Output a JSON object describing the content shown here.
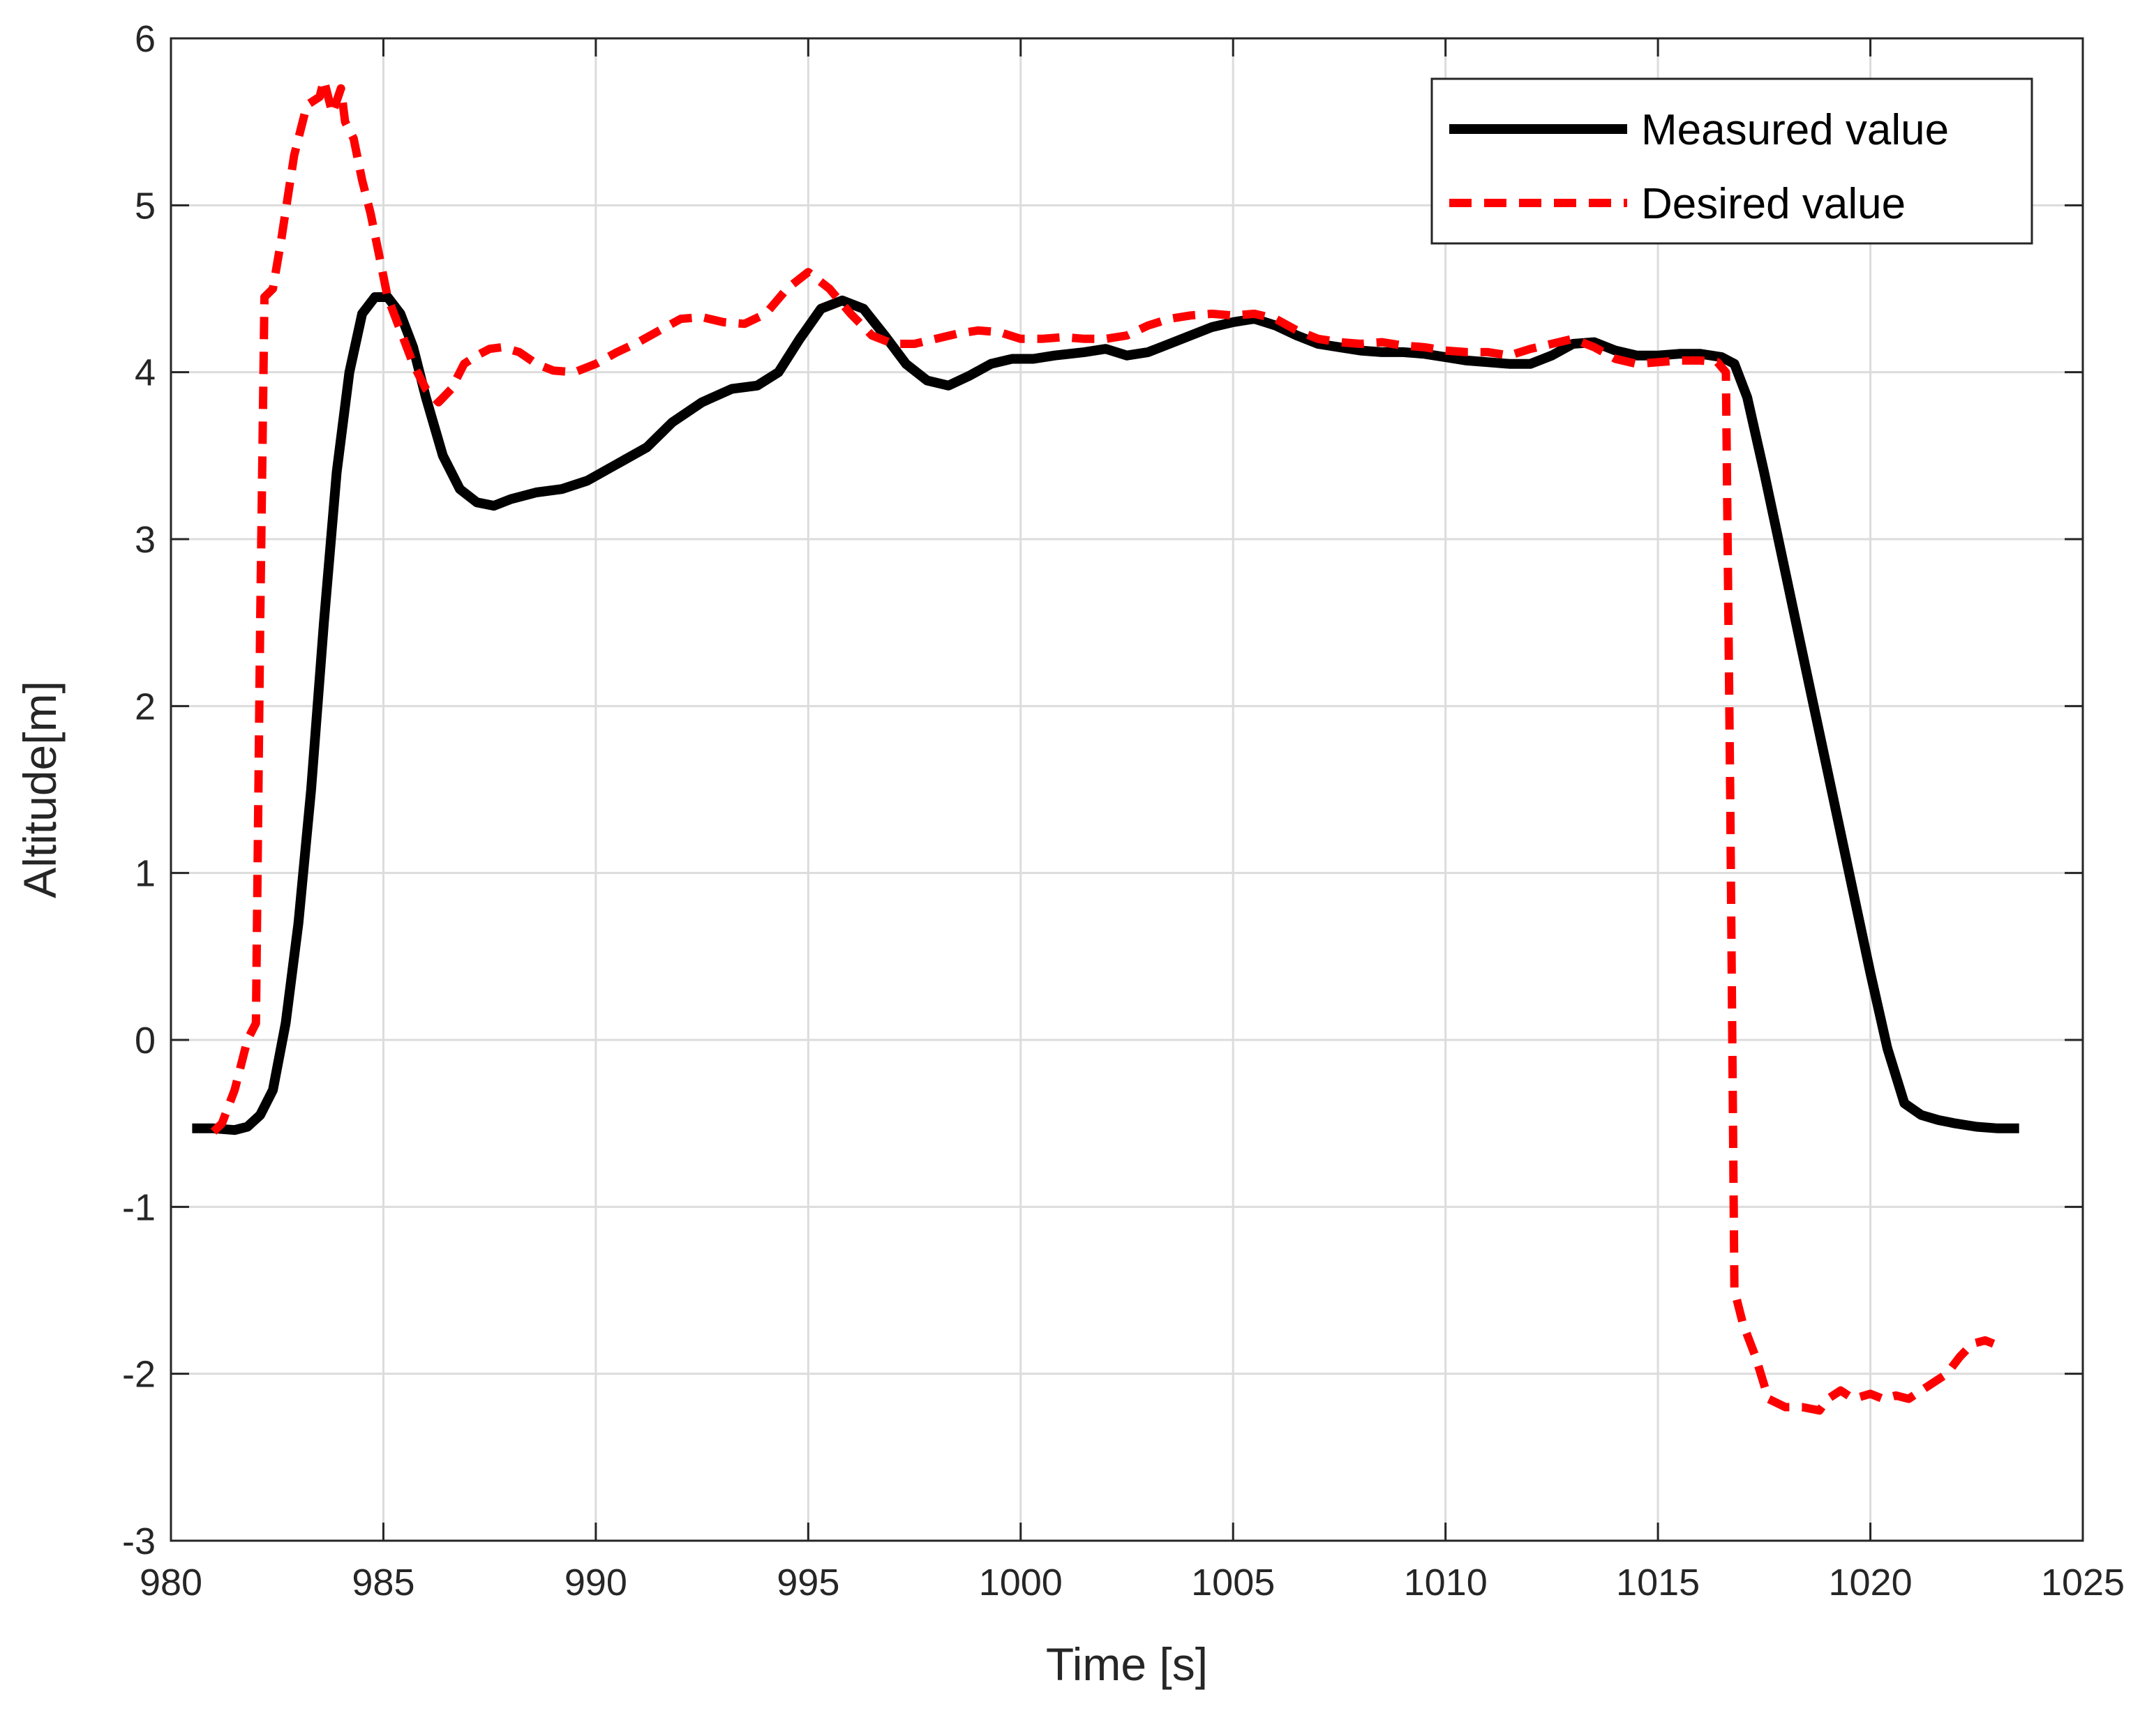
{
  "chart_data": {
    "type": "line",
    "title": "",
    "xlabel": "Time [s]",
    "ylabel": "Altitude[m]",
    "xlim": [
      980,
      1025
    ],
    "ylim": [
      -3,
      6
    ],
    "xticks": [
      "980",
      "985",
      "990",
      "995",
      "1000",
      "1005",
      "1010",
      "1015",
      "1020",
      "1025"
    ],
    "yticks": [
      "-3",
      "-2",
      "-1",
      "0",
      "1",
      "2",
      "3",
      "4",
      "5",
      "6"
    ],
    "grid": true,
    "legend_position": "top-right",
    "series": [
      {
        "name": "Measured value",
        "color": "#000000",
        "style": "solid",
        "points": [
          [
            980.5,
            -0.53
          ],
          [
            981.0,
            -0.53
          ],
          [
            981.5,
            -0.54
          ],
          [
            981.8,
            -0.52
          ],
          [
            982.1,
            -0.45
          ],
          [
            982.4,
            -0.3
          ],
          [
            982.7,
            0.1
          ],
          [
            983.0,
            0.7
          ],
          [
            983.3,
            1.5
          ],
          [
            983.6,
            2.5
          ],
          [
            983.9,
            3.4
          ],
          [
            984.2,
            4.0
          ],
          [
            984.5,
            4.35
          ],
          [
            984.8,
            4.45
          ],
          [
            985.1,
            4.45
          ],
          [
            985.4,
            4.35
          ],
          [
            985.7,
            4.15
          ],
          [
            986.0,
            3.85
          ],
          [
            986.4,
            3.5
          ],
          [
            986.8,
            3.3
          ],
          [
            987.2,
            3.22
          ],
          [
            987.6,
            3.2
          ],
          [
            988.0,
            3.24
          ],
          [
            988.6,
            3.28
          ],
          [
            989.2,
            3.3
          ],
          [
            989.8,
            3.35
          ],
          [
            990.5,
            3.45
          ],
          [
            991.2,
            3.55
          ],
          [
            991.8,
            3.7
          ],
          [
            992.5,
            3.82
          ],
          [
            993.2,
            3.9
          ],
          [
            993.8,
            3.92
          ],
          [
            994.3,
            4.0
          ],
          [
            994.8,
            4.2
          ],
          [
            995.3,
            4.38
          ],
          [
            995.8,
            4.43
          ],
          [
            996.3,
            4.38
          ],
          [
            996.8,
            4.22
          ],
          [
            997.3,
            4.05
          ],
          [
            997.8,
            3.95
          ],
          [
            998.3,
            3.92
          ],
          [
            998.8,
            3.98
          ],
          [
            999.3,
            4.05
          ],
          [
            999.8,
            4.08
          ],
          [
            1000.3,
            4.08
          ],
          [
            1000.8,
            4.1
          ],
          [
            1001.5,
            4.12
          ],
          [
            1002.0,
            4.14
          ],
          [
            1002.5,
            4.1
          ],
          [
            1003.0,
            4.12
          ],
          [
            1003.5,
            4.17
          ],
          [
            1004.0,
            4.22
          ],
          [
            1004.5,
            4.27
          ],
          [
            1005.0,
            4.3
          ],
          [
            1005.5,
            4.32
          ],
          [
            1006.0,
            4.28
          ],
          [
            1006.5,
            4.22
          ],
          [
            1007.0,
            4.17
          ],
          [
            1007.5,
            4.15
          ],
          [
            1008.0,
            4.13
          ],
          [
            1008.5,
            4.12
          ],
          [
            1009.0,
            4.12
          ],
          [
            1009.5,
            4.11
          ],
          [
            1010.0,
            4.09
          ],
          [
            1010.5,
            4.07
          ],
          [
            1011.0,
            4.06
          ],
          [
            1011.5,
            4.05
          ],
          [
            1012.0,
            4.05
          ],
          [
            1012.5,
            4.1
          ],
          [
            1013.0,
            4.17
          ],
          [
            1013.5,
            4.18
          ],
          [
            1014.0,
            4.13
          ],
          [
            1014.5,
            4.1
          ],
          [
            1015.0,
            4.1
          ],
          [
            1015.5,
            4.11
          ],
          [
            1016.0,
            4.11
          ],
          [
            1016.5,
            4.09
          ],
          [
            1016.8,
            4.05
          ],
          [
            1017.1,
            3.85
          ],
          [
            1017.5,
            3.4
          ],
          [
            1018.0,
            2.8
          ],
          [
            1018.5,
            2.2
          ],
          [
            1019.0,
            1.6
          ],
          [
            1019.5,
            1.0
          ],
          [
            1020.0,
            0.4
          ],
          [
            1020.4,
            -0.05
          ],
          [
            1020.8,
            -0.38
          ],
          [
            1021.2,
            -0.45
          ],
          [
            1021.6,
            -0.48
          ],
          [
            1022.0,
            -0.5
          ],
          [
            1022.5,
            -0.52
          ],
          [
            1023.0,
            -0.53
          ],
          [
            1023.5,
            -0.53
          ]
        ]
      },
      {
        "name": "Desired value",
        "color": "#ff0000",
        "style": "dashed",
        "points": [
          [
            981.0,
            -0.55
          ],
          [
            981.2,
            -0.5
          ],
          [
            981.5,
            -0.3
          ],
          [
            981.8,
            0.0
          ],
          [
            982.0,
            0.1
          ],
          [
            982.1,
            2.5
          ],
          [
            982.2,
            4.45
          ],
          [
            982.4,
            4.5
          ],
          [
            982.6,
            4.8
          ],
          [
            982.9,
            5.3
          ],
          [
            983.2,
            5.6
          ],
          [
            983.5,
            5.65
          ],
          [
            983.6,
            5.75
          ],
          [
            983.8,
            5.55
          ],
          [
            984.0,
            5.7
          ],
          [
            984.1,
            5.5
          ],
          [
            984.3,
            5.4
          ],
          [
            984.5,
            5.15
          ],
          [
            984.7,
            4.95
          ],
          [
            984.9,
            4.7
          ],
          [
            985.1,
            4.45
          ],
          [
            985.4,
            4.25
          ],
          [
            985.7,
            4.05
          ],
          [
            986.0,
            3.9
          ],
          [
            986.3,
            3.82
          ],
          [
            986.6,
            3.9
          ],
          [
            986.9,
            4.05
          ],
          [
            987.2,
            4.1
          ],
          [
            987.5,
            4.14
          ],
          [
            987.8,
            4.15
          ],
          [
            988.2,
            4.12
          ],
          [
            988.6,
            4.05
          ],
          [
            989.0,
            4.01
          ],
          [
            989.5,
            4.0
          ],
          [
            990.0,
            4.05
          ],
          [
            990.5,
            4.12
          ],
          [
            991.0,
            4.18
          ],
          [
            991.5,
            4.25
          ],
          [
            992.0,
            4.32
          ],
          [
            992.5,
            4.33
          ],
          [
            993.0,
            4.3
          ],
          [
            993.5,
            4.29
          ],
          [
            994.0,
            4.35
          ],
          [
            994.5,
            4.5
          ],
          [
            995.0,
            4.6
          ],
          [
            995.5,
            4.5
          ],
          [
            996.0,
            4.35
          ],
          [
            996.5,
            4.22
          ],
          [
            997.0,
            4.17
          ],
          [
            997.5,
            4.17
          ],
          [
            998.0,
            4.2
          ],
          [
            998.5,
            4.23
          ],
          [
            999.0,
            4.25
          ],
          [
            999.5,
            4.24
          ],
          [
            1000.0,
            4.2
          ],
          [
            1000.5,
            4.2
          ],
          [
            1001.0,
            4.21
          ],
          [
            1001.5,
            4.2
          ],
          [
            1002.0,
            4.2
          ],
          [
            1002.5,
            4.22
          ],
          [
            1003.0,
            4.28
          ],
          [
            1003.5,
            4.32
          ],
          [
            1004.0,
            4.34
          ],
          [
            1004.5,
            4.35
          ],
          [
            1005.0,
            4.34
          ],
          [
            1005.5,
            4.35
          ],
          [
            1006.0,
            4.32
          ],
          [
            1006.5,
            4.25
          ],
          [
            1007.0,
            4.2
          ],
          [
            1007.5,
            4.18
          ],
          [
            1008.0,
            4.17
          ],
          [
            1008.5,
            4.18
          ],
          [
            1009.0,
            4.16
          ],
          [
            1009.5,
            4.15
          ],
          [
            1010.0,
            4.13
          ],
          [
            1010.5,
            4.12
          ],
          [
            1011.0,
            4.12
          ],
          [
            1011.5,
            4.1
          ],
          [
            1012.0,
            4.14
          ],
          [
            1012.5,
            4.17
          ],
          [
            1013.0,
            4.2
          ],
          [
            1013.5,
            4.15
          ],
          [
            1014.0,
            4.08
          ],
          [
            1014.5,
            4.05
          ],
          [
            1015.0,
            4.06
          ],
          [
            1015.5,
            4.07
          ],
          [
            1016.0,
            4.07
          ],
          [
            1016.4,
            4.06
          ],
          [
            1016.6,
            4.0
          ],
          [
            1016.7,
            1.5
          ],
          [
            1016.8,
            -1.5
          ],
          [
            1017.0,
            -1.7
          ],
          [
            1017.3,
            -1.9
          ],
          [
            1017.6,
            -2.15
          ],
          [
            1018.0,
            -2.2
          ],
          [
            1018.4,
            -2.2
          ],
          [
            1018.8,
            -2.22
          ],
          [
            1019.0,
            -2.15
          ],
          [
            1019.3,
            -2.1
          ],
          [
            1019.6,
            -2.15
          ],
          [
            1020.0,
            -2.12
          ],
          [
            1020.3,
            -2.15
          ],
          [
            1020.6,
            -2.13
          ],
          [
            1020.9,
            -2.15
          ],
          [
            1021.2,
            -2.1
          ],
          [
            1021.5,
            -2.05
          ],
          [
            1021.8,
            -2.0
          ],
          [
            1022.1,
            -1.9
          ],
          [
            1022.4,
            -1.82
          ],
          [
            1022.7,
            -1.8
          ],
          [
            1022.9,
            -1.82
          ]
        ]
      }
    ]
  }
}
